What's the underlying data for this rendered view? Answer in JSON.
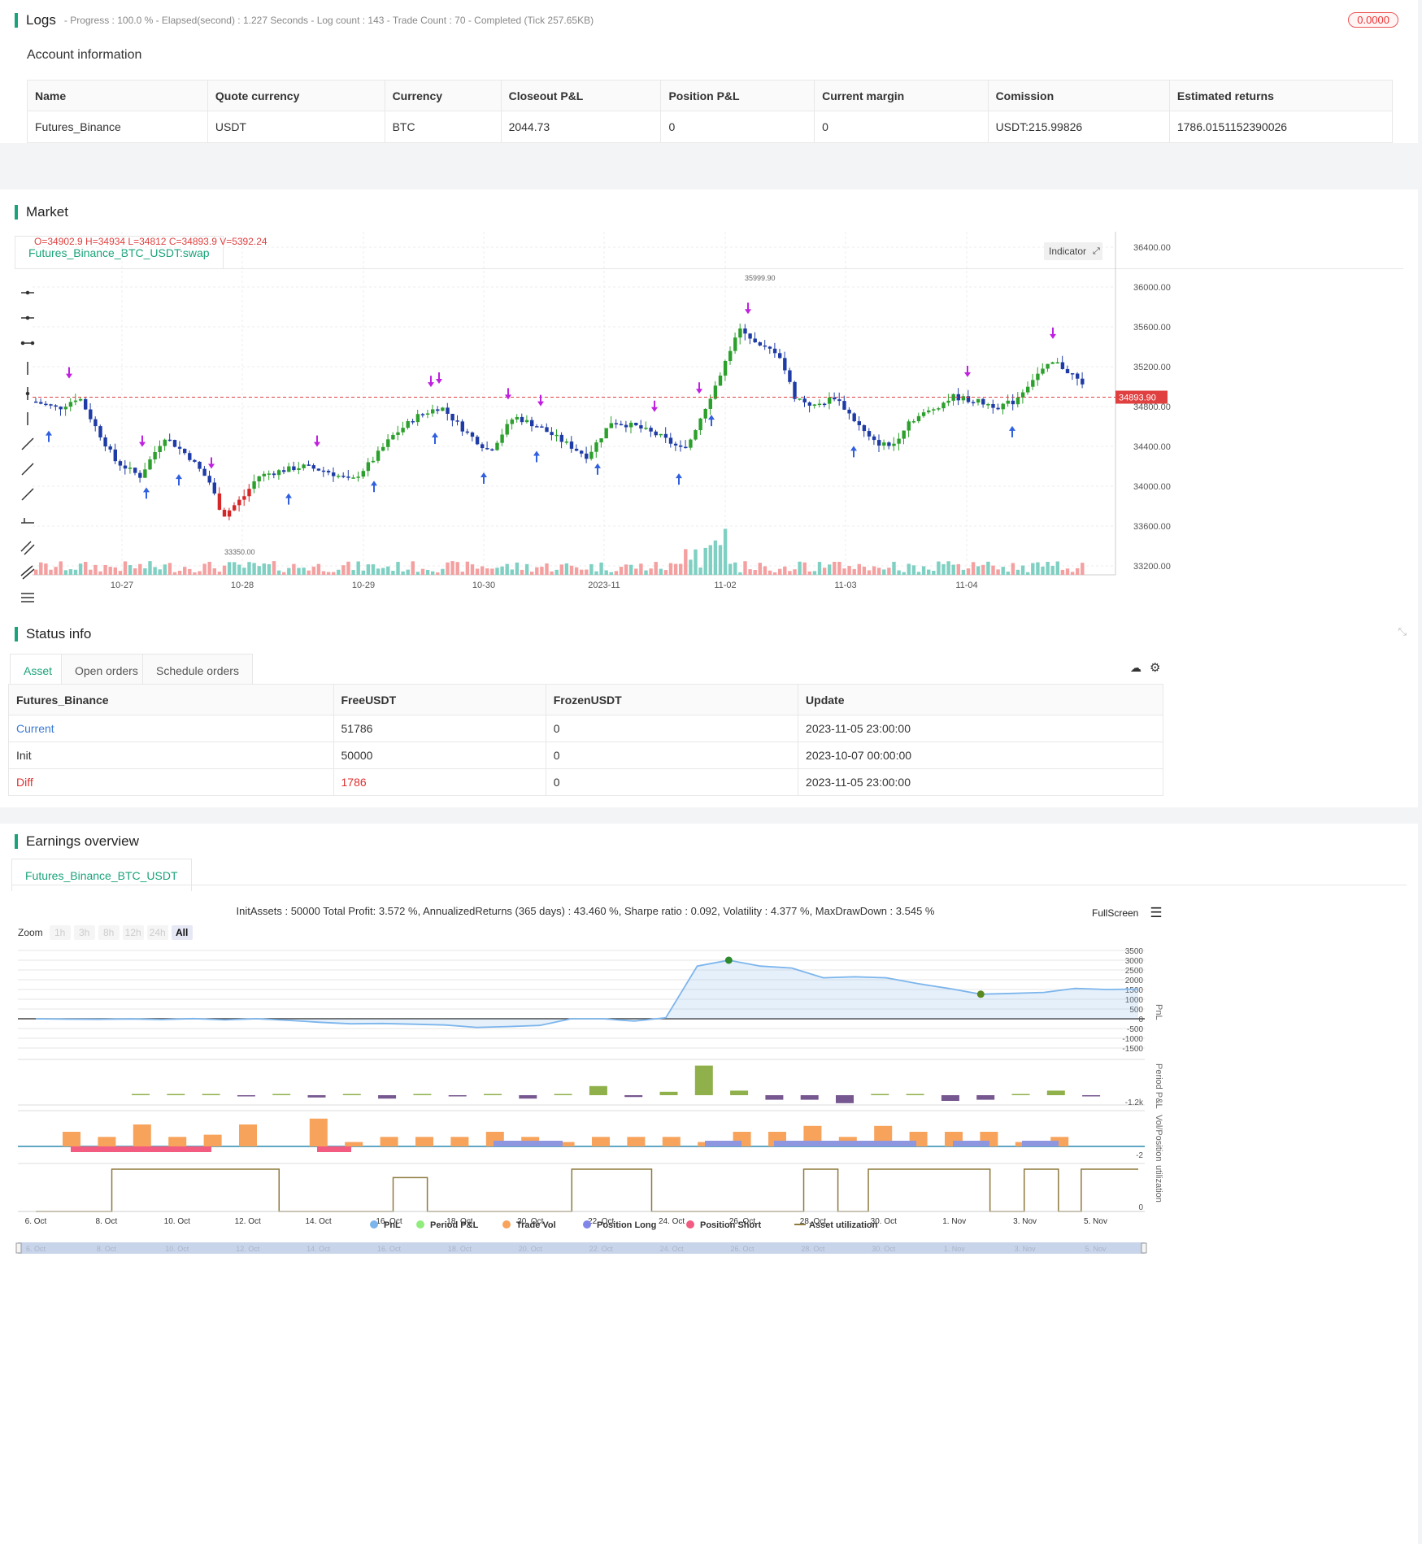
{
  "logs": {
    "title": "Logs",
    "summary": "- Progress : 100.0 % - Elapsed(second) : 1.227  Seconds - Log count : 143 - Trade Count : 70 - Completed (Tick 257.65KB)",
    "badge": "0.0000",
    "account_title": "Account information",
    "columns": [
      "Name",
      "Quote currency",
      "Currency",
      "Closeout P&L",
      "Position P&L",
      "Current margin",
      "Comission",
      "Estimated returns"
    ],
    "row": [
      "Futures_Binance",
      "USDT",
      "BTC",
      "2044.73",
      "0",
      "0",
      "USDT:215.99826",
      "1786.0151152390026"
    ]
  },
  "market": {
    "title": "Market",
    "tab": "Futures_Binance_BTC_USDT:swap",
    "ohlc": "O=34902.9 H=34934 L=34812 C=34893.9 V=5392.24",
    "indicator_label": "Indicator",
    "price_axis": [
      "36400.00",
      "36000.00",
      "35600.00",
      "35200.00",
      "34800.00",
      "34400.00",
      "34000.00",
      "33600.00",
      "33200.00"
    ],
    "time_axis": [
      "10-27",
      "10-28",
      "10-29",
      "10-30",
      "2023-11",
      "11-02",
      "11-03",
      "11-04"
    ],
    "last_price": "34893.90",
    "high_label": "35999.90",
    "low_label": "33350.00",
    "colors": {
      "up": "#2ca02c",
      "down": "#1f3ca6",
      "short": "#d62728",
      "signal_long": "#3060e0",
      "signal_close": "#c020e0"
    }
  },
  "status": {
    "title": "Status info",
    "tabs": [
      "Asset",
      "Open orders",
      "Schedule orders"
    ],
    "columns": [
      "Futures_Binance",
      "FreeUSDT",
      "FrozenUSDT",
      "Update"
    ],
    "rows": [
      [
        "Current",
        "51786",
        "0",
        "2023-11-05 23:00:00"
      ],
      [
        "Init",
        "50000",
        "0",
        "2023-10-07 00:00:00"
      ],
      [
        "Diff",
        "1786",
        "0",
        "2023-11-05 23:00:00"
      ]
    ]
  },
  "earnings": {
    "title": "Earnings overview",
    "tab": "Futures_Binance_BTC_USDT",
    "stats": "InitAssets : 50000 Total Profit: 3.572 %, AnnualizedReturns (365 days) : 43.460 %, Sharpe ratio : 0.092, Volatility : 4.377 %, MaxDrawDown : 3.545 %",
    "fullscreen": "FullScreen",
    "zoom_label": "Zoom",
    "zoom_buttons": [
      "1h",
      "3h",
      "8h",
      "12h",
      "24h",
      "All"
    ],
    "pnl_axis": [
      "3500",
      "3000",
      "2500",
      "2000",
      "1500",
      "1000",
      "500",
      "0",
      "-500",
      "-1000",
      "-1500"
    ],
    "period_axis_label": "-1.2k",
    "vol_axis_label": "-2",
    "util_axis_label": "0",
    "axis_titles": [
      "PnL",
      "Period P&L",
      "Vol/Position",
      "utilization"
    ],
    "date_axis": [
      "6. Oct",
      "8. Oct",
      "10. Oct",
      "12. Oct",
      "14. Oct",
      "16. Oct",
      "18. Oct",
      "20. Oct",
      "22. Oct",
      "24. Oct",
      "26. Oct",
      "28. Oct",
      "30. Oct",
      "1. Nov",
      "3. Nov",
      "5. Nov"
    ],
    "legend": [
      {
        "name": "PnL",
        "color": "#7cb5ec"
      },
      {
        "name": "Period P&L",
        "color": "#90ed7d"
      },
      {
        "name": "Trade Vol",
        "color": "#f7a35c"
      },
      {
        "name": "Position Long",
        "color": "#8085e9"
      },
      {
        "name": "Position Short",
        "color": "#f15c80"
      },
      {
        "name": "Asset utilization",
        "color": "#8d7a3d"
      }
    ],
    "pnl_series": [
      0,
      -20,
      -30,
      -10,
      -40,
      10,
      -60,
      0,
      -80,
      -180,
      -260,
      -240,
      -280,
      -320,
      -440,
      -400,
      -340,
      0,
      0,
      -120,
      50,
      2700,
      3000,
      2700,
      2600,
      2100,
      2150,
      2100,
      1800,
      1550,
      1260,
      1300,
      1350,
      1560,
      1500,
      1520
    ],
    "period_pnl": [
      0,
      30,
      40,
      -20,
      50,
      -100,
      0,
      -150,
      30,
      -50,
      50,
      -150,
      30,
      400,
      -80,
      150,
      1300,
      200,
      -200,
      -200,
      -350,
      50,
      50,
      -250,
      -200,
      30,
      200,
      -50
    ],
    "trade_vol": [
      2,
      1.3,
      3,
      1.3,
      1.6,
      3,
      0,
      3.8,
      0.6,
      1.3,
      1.3,
      1.3,
      2,
      1.3,
      0.6,
      1.3,
      1.3,
      1.3,
      0.6,
      2,
      2,
      2.8,
      1.3,
      2.8,
      2,
      2,
      2,
      0.6,
      1.3
    ],
    "utilization_segments": [
      [
        0,
        0
      ],
      [
        2,
        1
      ],
      [
        6.4,
        0
      ],
      [
        9.4,
        0.8
      ],
      [
        10.3,
        0
      ],
      [
        14.1,
        1
      ],
      [
        16.2,
        0
      ],
      [
        20.2,
        1
      ],
      [
        21.1,
        0
      ],
      [
        21.9,
        1
      ],
      [
        22.9,
        1
      ],
      [
        23.7,
        1
      ],
      [
        25.1,
        0
      ],
      [
        26,
        1
      ],
      [
        26.9,
        0
      ],
      [
        27.5,
        1
      ]
    ]
  }
}
